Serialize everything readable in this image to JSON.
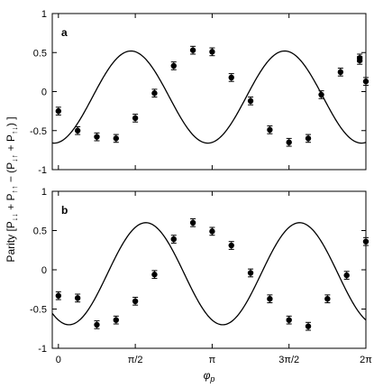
{
  "figure": {
    "ylabel_main": "Parity  [",
    "ylabel_P": "P",
    "ylabel_sub1": "↓↓",
    "ylabel_plus1": " + ",
    "ylabel_sub2": "↑↑",
    "ylabel_minus": " − (",
    "ylabel_sub3": "↓↑",
    "ylabel_plus2": " + ",
    "ylabel_sub4": "↑↓",
    "ylabel_close": ") ]",
    "xlabel_phi": "φ",
    "xlabel_sub": "p"
  },
  "chart_data": [
    {
      "type": "scatter",
      "panel_label": "a",
      "x_tick_labels": [],
      "y_tick_labels": [
        "1",
        "0.5",
        "0",
        "-0.5",
        "-1"
      ],
      "y_ticks": [
        1,
        0.5,
        0,
        -0.5,
        -1
      ],
      "xlim": [
        -0.04,
        2.0
      ],
      "ylim": [
        -1,
        1
      ],
      "fit": {
        "amplitude": 0.59,
        "offset": -0.07,
        "phase": 3.32,
        "frequency": 4
      },
      "series": [
        {
          "x": [
            0,
            0.125,
            0.25,
            0.375,
            0.5,
            0.625,
            0.75,
            0.875,
            1.0,
            1.125,
            1.25,
            1.375,
            1.5,
            1.625,
            1.75,
            1.875
          ],
          "y": [
            -0.25,
            -0.5,
            -0.58,
            -0.6,
            -0.34,
            -0.02,
            0.33,
            0.53,
            0.51,
            0.18,
            -0.12,
            -0.49,
            -0.65,
            -0.6,
            -0.41,
            -0.04
          ],
          "err": [
            0.05,
            0.05,
            0.05,
            0.05,
            0.05,
            0.05,
            0.05,
            0.05,
            0.05,
            0.05,
            0.05,
            0.05,
            0.05,
            0.05,
            0.05,
            0.05
          ]
        }
      ],
      "series_tail": {
        "x": [
          1.75,
          1.875,
          2.0
        ],
        "y": [
          0.25,
          0.43,
          0.4
        ]
      },
      "grid": false
    },
    {
      "type": "scatter",
      "panel_label": "b",
      "x_tick_labels": [
        "0",
        "π/2",
        "π",
        "3π/2",
        "2π"
      ],
      "x_ticks": [
        0,
        0.5,
        1.0,
        1.5,
        2.0
      ],
      "y_tick_labels": [
        "1",
        "0.5",
        "0",
        "-0.5",
        "-1"
      ],
      "y_ticks": [
        1,
        0.5,
        0,
        -0.5,
        -1
      ],
      "xlim": [
        -0.04,
        2.0
      ],
      "ylim": [
        -1,
        1
      ],
      "fit": {
        "amplitude": 0.65,
        "offset": -0.05,
        "phase": 2.71,
        "frequency": 4
      },
      "series": [
        {
          "x": [
            0,
            0.125,
            0.25,
            0.375,
            0.5,
            0.625,
            0.75,
            0.875,
            1.0,
            1.125,
            1.25,
            1.375,
            1.5,
            1.625,
            1.75,
            1.875,
            2.0
          ],
          "y": [
            -0.33,
            -0.36,
            -0.7,
            -0.64,
            -0.4,
            -0.06,
            0.39,
            0.6,
            0.49,
            0.31,
            -0.04,
            -0.37,
            -0.64,
            -0.72,
            -0.37,
            -0.07,
            0.36
          ],
          "err": [
            0.05,
            0.05,
            0.05,
            0.05,
            0.05,
            0.05,
            0.05,
            0.05,
            0.05,
            0.05,
            0.05,
            0.05,
            0.05,
            0.05,
            0.05,
            0.05,
            0.05
          ]
        }
      ],
      "grid": false
    }
  ]
}
